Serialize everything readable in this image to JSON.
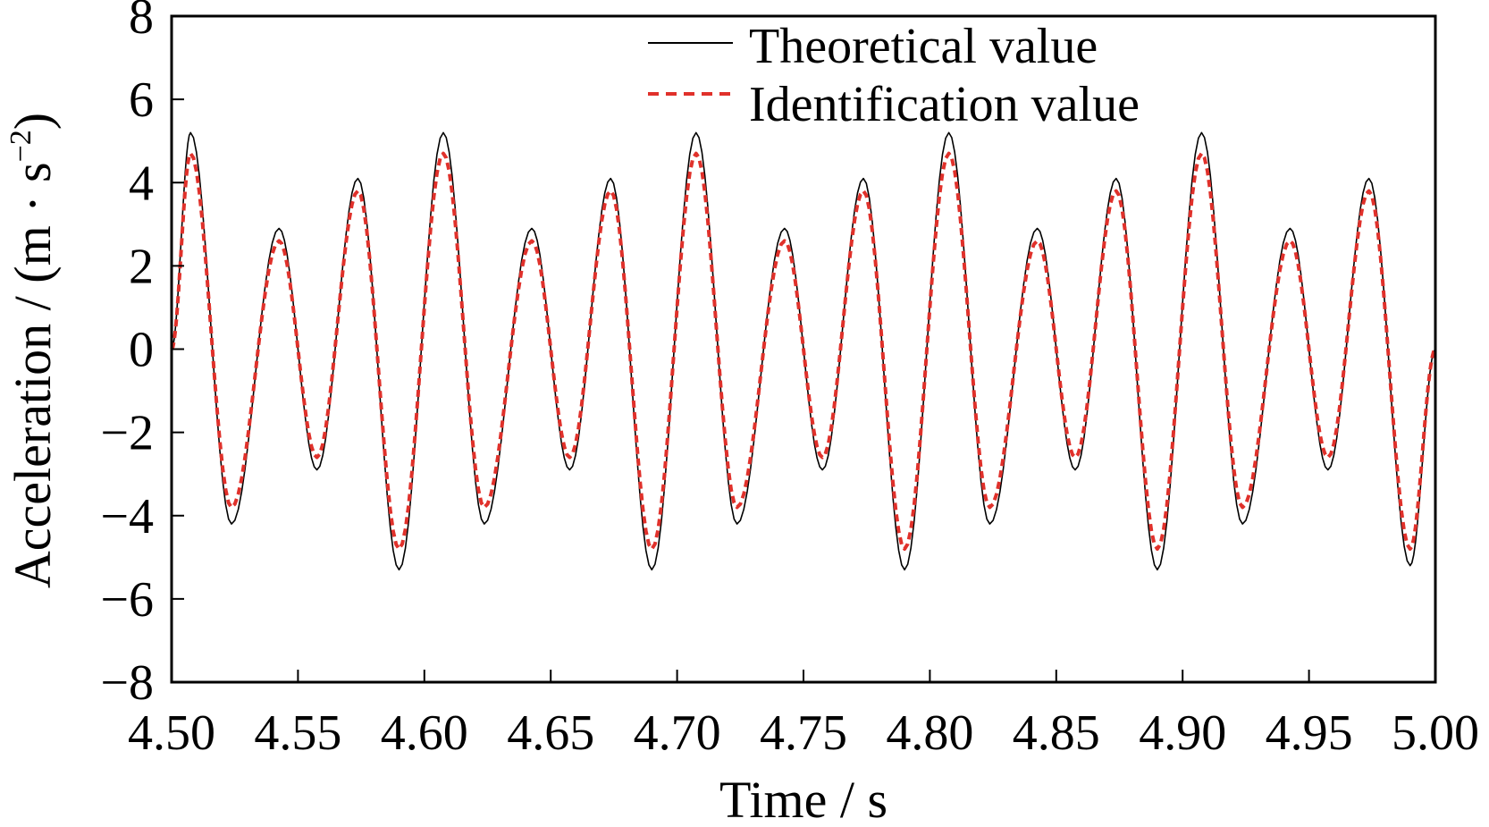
{
  "chart_data": {
    "type": "line",
    "title": "",
    "xlabel": "Time / s",
    "ylabel": "Acceleration / (m · s",
    "ylabel_sup": "−2",
    "ylabel_close": ")",
    "xlim": [
      4.5,
      5.0
    ],
    "ylim": [
      -8,
      8
    ],
    "x_ticks": [
      "4.50",
      "4.55",
      "4.60",
      "4.65",
      "4.70",
      "4.75",
      "4.80",
      "4.85",
      "4.90",
      "4.95",
      "5.00"
    ],
    "y_ticks": [
      "8",
      "6",
      "4",
      "2",
      "0",
      "−2",
      "−4",
      "−6",
      "−8"
    ],
    "grid": false,
    "legend_position": "top-right",
    "x": [
      4.5,
      4.5075,
      4.5237,
      4.5425,
      4.5575,
      4.5737,
      4.59,
      4.6075,
      4.6237,
      4.6425,
      4.6575,
      4.6737,
      4.69,
      4.7075,
      4.7237,
      4.7425,
      4.7575,
      4.7737,
      4.79,
      4.8075,
      4.8237,
      4.8425,
      4.8575,
      4.8737,
      4.89,
      4.9075,
      4.9237,
      4.9425,
      4.9575,
      4.9737,
      4.99,
      5.0
    ],
    "series": [
      {
        "name": "Theoretical value",
        "color": "#000000",
        "style": "solid",
        "values": [
          0.0,
          5.2,
          -4.2,
          2.9,
          -2.9,
          4.1,
          -5.3,
          5.2,
          -4.2,
          2.9,
          -2.9,
          4.1,
          -5.3,
          5.2,
          -4.2,
          2.9,
          -2.9,
          4.1,
          -5.3,
          5.2,
          -4.2,
          2.9,
          -2.9,
          4.1,
          -5.3,
          5.2,
          -4.2,
          2.9,
          -2.9,
          4.1,
          -5.2,
          0.0
        ]
      },
      {
        "name": "Identification value",
        "color": "#e0312b",
        "style": "dashed",
        "values": [
          0.0,
          4.7,
          -3.8,
          2.6,
          -2.6,
          3.8,
          -4.8,
          4.7,
          -3.8,
          2.6,
          -2.6,
          3.8,
          -4.8,
          4.7,
          -3.8,
          2.6,
          -2.6,
          3.8,
          -4.8,
          4.7,
          -3.8,
          2.6,
          -2.6,
          3.8,
          -4.8,
          4.7,
          -3.8,
          2.6,
          -2.6,
          3.8,
          -4.8,
          0.0
        ]
      }
    ]
  }
}
